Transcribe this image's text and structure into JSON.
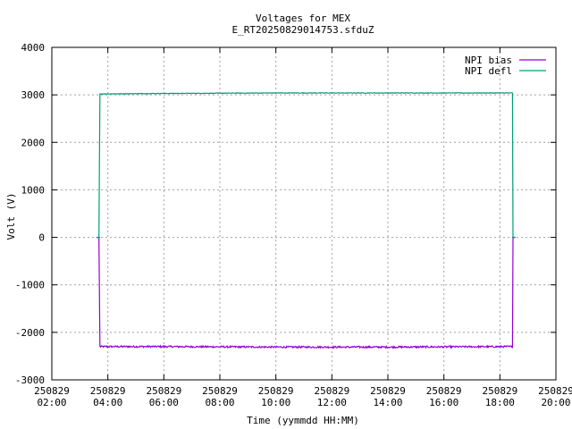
{
  "chart_data": {
    "type": "line",
    "title": "Voltages for MEX",
    "subtitle": "E_RT20250829014753.sfduZ",
    "xlabel": "Time (yymmdd HH:MM)",
    "ylabel": "Volt (V)",
    "xlim": [
      "250829 02:00",
      "250829 20:00"
    ],
    "ylim": [
      -3000,
      4000
    ],
    "grid": true,
    "legend_position": "top-right",
    "x_ticks": [
      {
        "date": "250829",
        "time": "02:00",
        "hour": 2
      },
      {
        "date": "250829",
        "time": "04:00",
        "hour": 4
      },
      {
        "date": "250829",
        "time": "06:00",
        "hour": 6
      },
      {
        "date": "250829",
        "time": "08:00",
        "hour": 8
      },
      {
        "date": "250829",
        "time": "10:00",
        "hour": 10
      },
      {
        "date": "250829",
        "time": "12:00",
        "hour": 12
      },
      {
        "date": "250829",
        "time": "14:00",
        "hour": 14
      },
      {
        "date": "250829",
        "time": "16:00",
        "hour": 16
      },
      {
        "date": "250829",
        "time": "18:00",
        "hour": 18
      },
      {
        "date": "250829",
        "time": "20:00",
        "hour": 20
      }
    ],
    "y_ticks": [
      4000,
      3000,
      2000,
      1000,
      0,
      -1000,
      -2000,
      -3000
    ],
    "series": [
      {
        "name": "NPI bias",
        "color": "#9400d3",
        "points": [
          {
            "x": "250829 03:41",
            "y": 0
          },
          {
            "x": "250829 03:43",
            "y": -2300
          },
          {
            "x": "250829 06:00",
            "y": -2300
          },
          {
            "x": "250829 10:00",
            "y": -2310
          },
          {
            "x": "250829 14:00",
            "y": -2310
          },
          {
            "x": "250829 18:27",
            "y": -2300
          },
          {
            "x": "250829 18:28",
            "y": 0
          }
        ]
      },
      {
        "name": "NPI defl",
        "color": "#009e73",
        "points": [
          {
            "x": "250829 03:41",
            "y": 0
          },
          {
            "x": "250829 03:43",
            "y": 3020
          },
          {
            "x": "250829 06:00",
            "y": 3030
          },
          {
            "x": "250829 10:00",
            "y": 3040
          },
          {
            "x": "250829 14:00",
            "y": 3040
          },
          {
            "x": "250829 18:27",
            "y": 3040
          },
          {
            "x": "250829 18:28",
            "y": 0
          }
        ]
      }
    ]
  }
}
